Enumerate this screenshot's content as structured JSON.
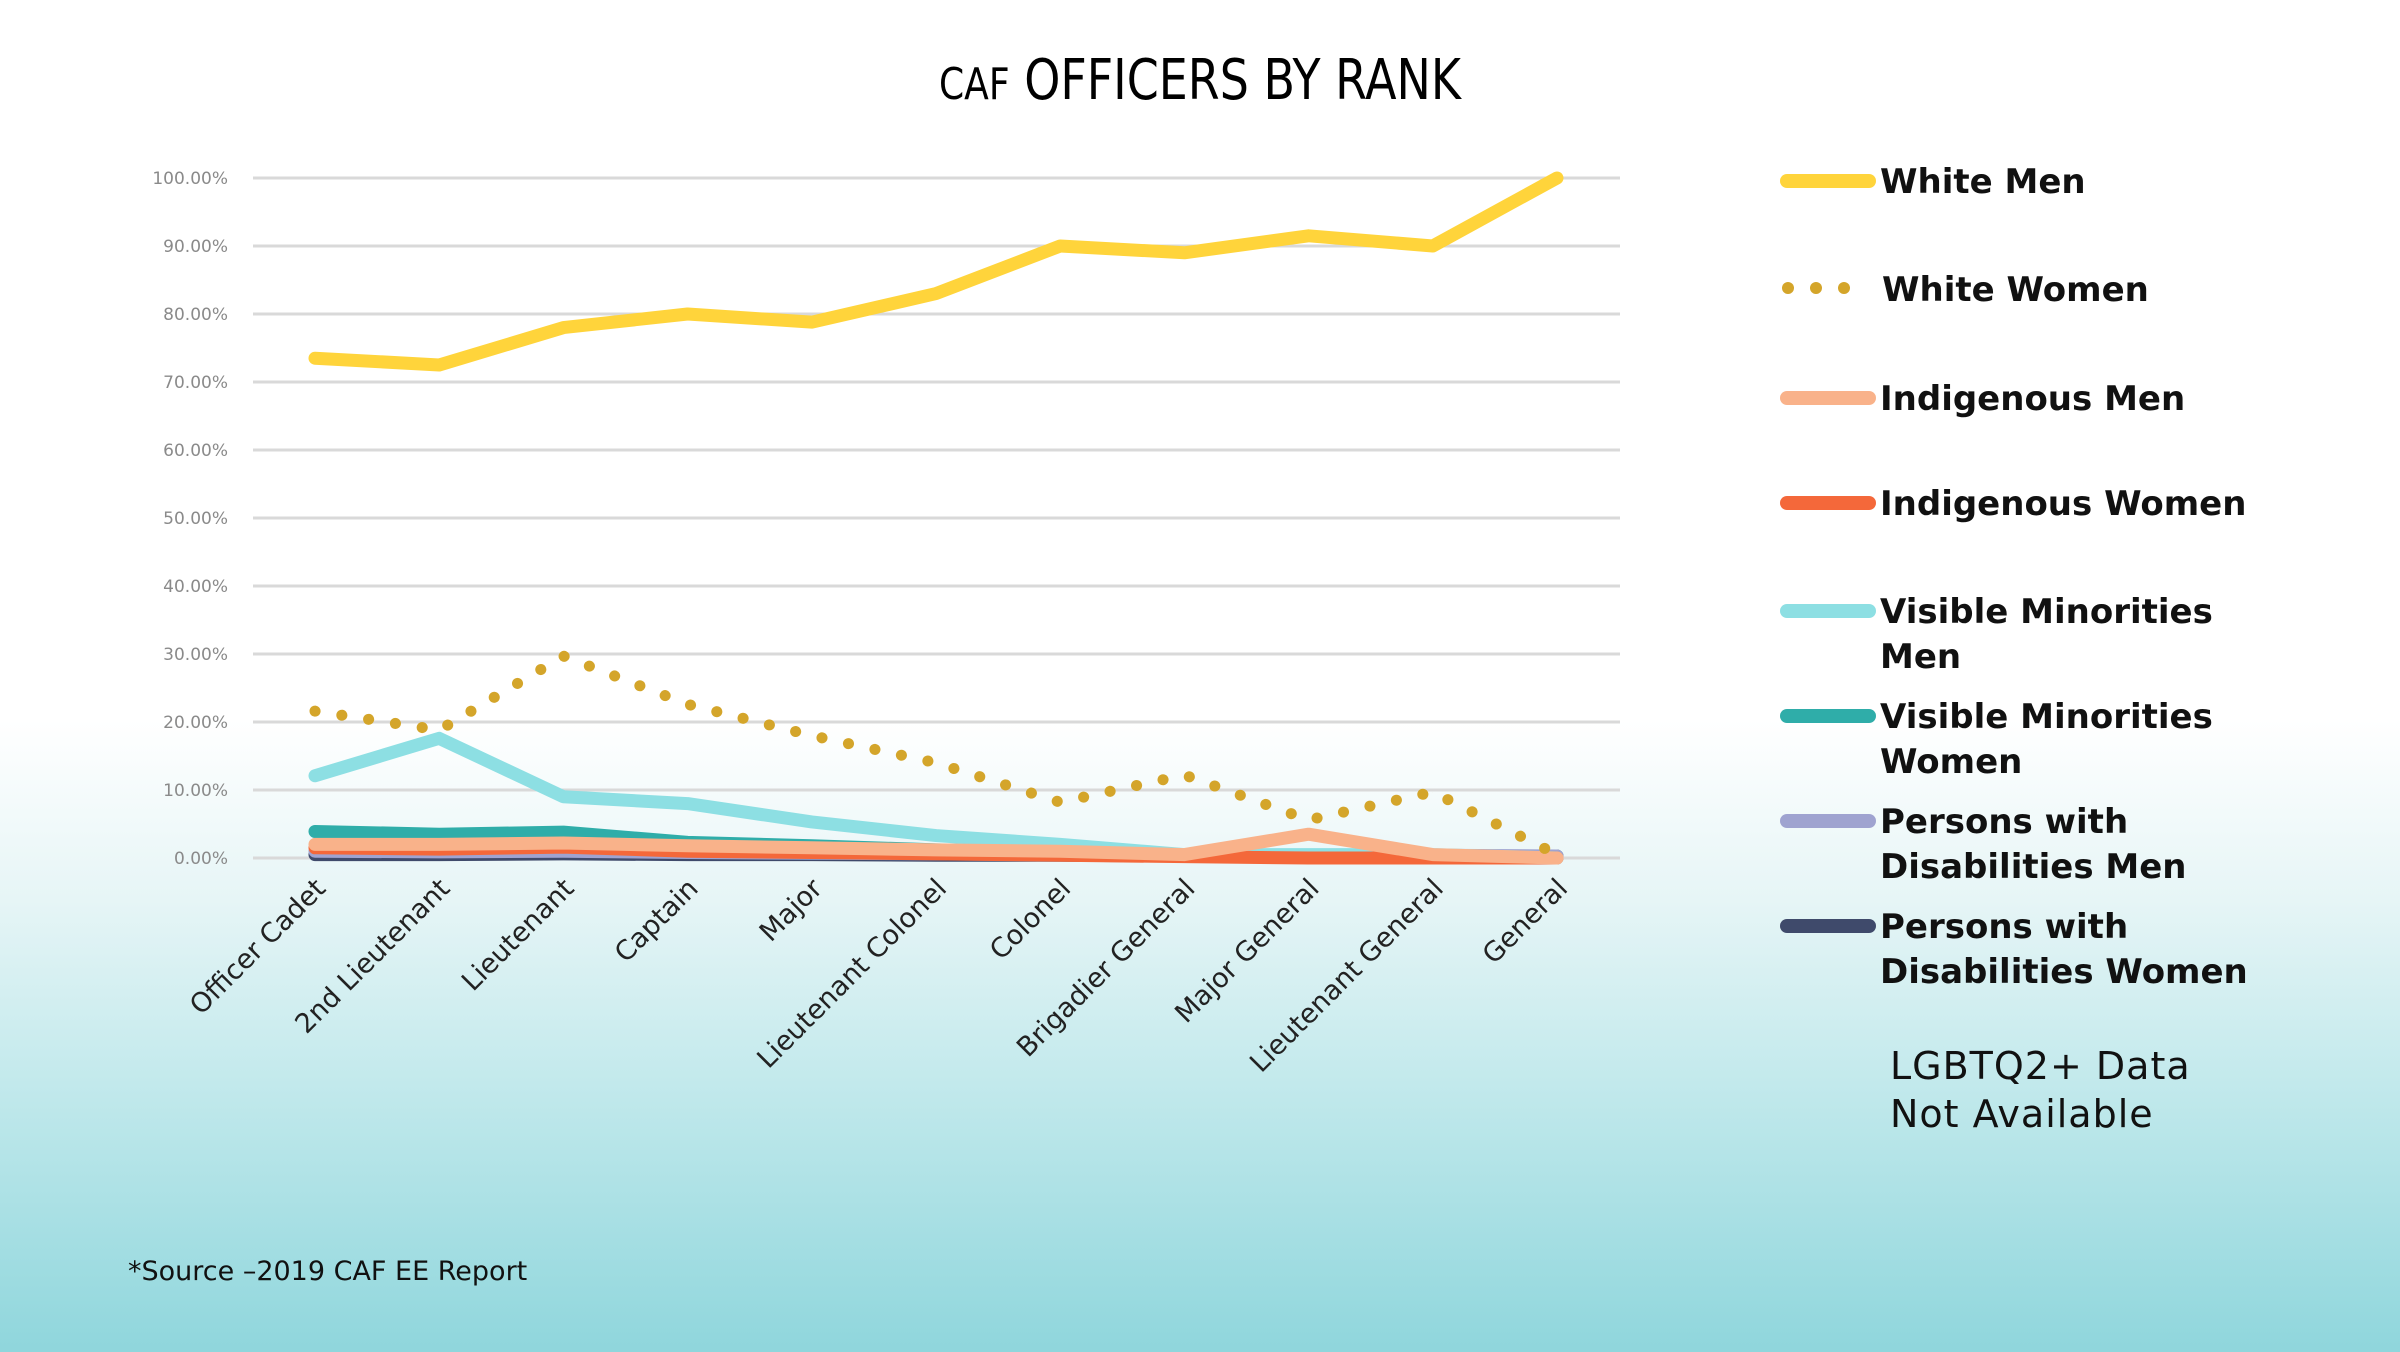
{
  "title": {
    "prefix": "CAF",
    "main": "OFFICERS BY RANK"
  },
  "lgbtq_note_line1": "LGBTQ2+ Data",
  "lgbtq_note_line2": "Not Available",
  "source_note": "*Source –2019 CAF EE Report",
  "chart_data": {
    "type": "line",
    "title": "CAF OFFICERS BY RANK",
    "xlabel": "",
    "ylabel": "",
    "ylim": [
      0,
      100
    ],
    "yticks": [
      "0.00%",
      "10.00%",
      "20.00%",
      "30.00%",
      "40.00%",
      "50.00%",
      "60.00%",
      "70.00%",
      "80.00%",
      "90.00%",
      "100.00%"
    ],
    "grid": true,
    "legend_position": "right",
    "categories": [
      "Officer Cadet",
      "2nd Lieutenant",
      "Lieutenant",
      "Captain",
      "Major",
      "Lieutenant Colonel",
      "Colonel",
      "Brigadier General",
      "Major General",
      "Lieutenant General",
      "General"
    ],
    "series": [
      {
        "name": "White Men",
        "legend_lines": [
          "White Men"
        ],
        "color": "#ffd43b",
        "style": "solid",
        "values": [
          73.5,
          72.5,
          78.0,
          80.0,
          78.8,
          83.0,
          90.0,
          89.0,
          91.5,
          90.0,
          100.0
        ]
      },
      {
        "name": "White Women",
        "legend_lines": [
          "White Women"
        ],
        "color": "#d4a52a",
        "style": "dotted",
        "values": [
          21.6,
          18.8,
          29.7,
          22.6,
          18.0,
          14.0,
          8.2,
          12.2,
          5.6,
          9.7,
          0.5
        ]
      },
      {
        "name": "Indigenous Men",
        "legend_lines": [
          "Indigenous Men"
        ],
        "color": "#f9b28a",
        "style": "solid",
        "values": [
          2.0,
          2.0,
          2.2,
          1.8,
          1.5,
          1.2,
          1.0,
          0.5,
          3.5,
          0.5,
          0.0
        ]
      },
      {
        "name": "Indigenous Women",
        "legend_lines": [
          "Indigenous Women"
        ],
        "color": "#f4683a",
        "style": "solid",
        "values": [
          1.5,
          1.3,
          1.6,
          1.0,
          0.8,
          0.6,
          0.4,
          0.2,
          0.0,
          0.0,
          0.0
        ]
      },
      {
        "name": "Visible Minorities Men",
        "legend_lines": [
          "Visible Minorities",
          "Men"
        ],
        "color": "#8ddfe3",
        "style": "solid",
        "values": [
          12.1,
          17.6,
          9.0,
          8.0,
          5.3,
          3.3,
          2.0,
          0.5,
          0.5,
          0.5,
          0.0
        ]
      },
      {
        "name": "Visible Minorities Women",
        "legend_lines": [
          "Visible Minorities",
          "Women"
        ],
        "color": "#2fada9",
        "style": "solid",
        "values": [
          3.9,
          3.5,
          3.8,
          2.3,
          1.8,
          1.2,
          0.8,
          0.3,
          0.3,
          0.3,
          0.0
        ]
      },
      {
        "name": "Persons with Disabilities Men",
        "legend_lines": [
          "Persons with",
          "Disabilities Men"
        ],
        "color": "#9fa3d0",
        "style": "solid",
        "values": [
          1.0,
          0.9,
          1.0,
          0.8,
          0.7,
          0.6,
          0.5,
          0.4,
          0.4,
          0.4,
          0.3
        ]
      },
      {
        "name": "Persons with Disabilities Women",
        "legend_lines": [
          "Persons with",
          "Disabilities Women"
        ],
        "color": "#3f4a6b",
        "style": "solid",
        "values": [
          0.5,
          0.5,
          0.6,
          0.5,
          0.5,
          0.4,
          0.4,
          0.3,
          0.3,
          0.3,
          0.3
        ]
      }
    ]
  }
}
